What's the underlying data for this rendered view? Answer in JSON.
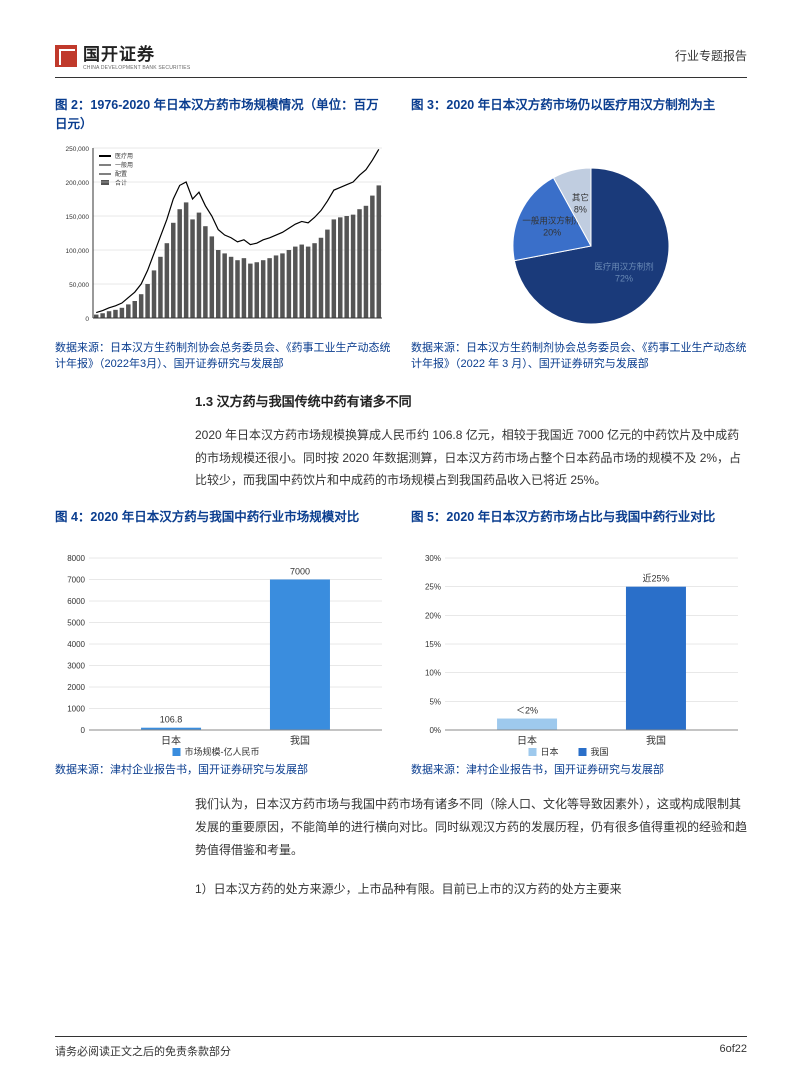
{
  "header": {
    "brand_cn": "国开证券",
    "brand_en": "CHINA DEVELOPMENT BANK SECURITIES",
    "doc_type": "行业专题报告"
  },
  "fig2": {
    "title": "图 2：1976-2020 年日本汉方药市场规模情况（单位：百万日元）",
    "source": "数据来源：日本汉方生药制剂协会总务委员会、《药事工业生产动态统计年报》（2022年3月）、国开证券研究与发展部",
    "type": "bar_line",
    "ylim": [
      0,
      250000
    ],
    "ytick_step": 50000,
    "years_count": 45,
    "bar_color": "#555555",
    "line_colors": [
      "#000000",
      "#000000",
      "#000000"
    ],
    "grid_color": "#d0d0d0",
    "background_color": "#ffffff",
    "bar_values": [
      5000,
      7000,
      10000,
      12000,
      15000,
      20000,
      25000,
      35000,
      50000,
      70000,
      90000,
      110000,
      140000,
      160000,
      170000,
      145000,
      155000,
      135000,
      120000,
      100000,
      95000,
      90000,
      85000,
      88000,
      80000,
      82000,
      85000,
      88000,
      92000,
      95000,
      100000,
      105000,
      108000,
      105000,
      110000,
      118000,
      130000,
      145000,
      148000,
      150000,
      152000,
      160000,
      165000,
      180000,
      195000
    ],
    "top_line_values": [
      8000,
      11000,
      15000,
      18000,
      22000,
      30000,
      38000,
      50000,
      70000,
      95000,
      120000,
      145000,
      175000,
      195000,
      200000,
      175000,
      185000,
      165000,
      150000,
      130000,
      122000,
      118000,
      112000,
      115000,
      108000,
      110000,
      115000,
      118000,
      122000,
      126000,
      132000,
      138000,
      142000,
      140000,
      148000,
      158000,
      172000,
      188000,
      192000,
      196000,
      200000,
      210000,
      218000,
      232000,
      248000
    ],
    "legend": [
      "医疗用",
      "一般用",
      "配置",
      "合计"
    ]
  },
  "fig3": {
    "title": "图 3：2020 年日本汉方药市场仍以医疗用汉方制剂为主",
    "source": "数据来源：日本汉方生药制剂协会总务委员会、《药事工业生产动态统计年报》（2022 年 3 月）、国开证券研究与发展部",
    "type": "pie",
    "background_color": "#ffffff",
    "slices": [
      {
        "label": "医疗用汉方制剂",
        "pct": 72,
        "pct_label": "72%",
        "color": "#1a3a7a"
      },
      {
        "label": "一般用汉方制剂",
        "pct": 20,
        "pct_label": "20%",
        "color": "#3a6fc9"
      },
      {
        "label": "其它",
        "pct": 8,
        "pct_label": "8%",
        "color": "#c0cde0"
      }
    ]
  },
  "section13": {
    "heading": "1.3 汉方药与我国传统中药有诸多不同",
    "paragraph": "2020 年日本汉方药市场规模换算成人民币约 106.8 亿元，相较于我国近 7000 亿元的中药饮片及中成药的市场规模还很小。同时按 2020 年数据测算，日本汉方药市场占整个日本药品市场的规模不及 2%，占比较少，而我国中药饮片和中成药的市场规模占到我国药品收入已将近 25%。"
  },
  "fig4": {
    "title": "图 4：2020 年日本汉方药与我国中药行业市场规模对比",
    "source": "数据来源：津村企业报告书，国开证券研究与发展部",
    "type": "bar",
    "categories": [
      "日本",
      "我国"
    ],
    "values": [
      106.8,
      7000
    ],
    "value_labels": [
      "106.8",
      "7000"
    ],
    "ylim": [
      0,
      8000
    ],
    "ytick_step": 1000,
    "bar_color": "#3a8dde",
    "grid_color": "#d0d0d0",
    "background_color": "#ffffff",
    "legend_label": "市场规模-亿人民币",
    "label_fontsize": 9
  },
  "fig5": {
    "title": "图 5：2020 年日本汉方药市场占比与我国中药行业对比",
    "source": "数据来源：津村企业报告书，国开证券研究与发展部",
    "type": "bar",
    "categories": [
      "日本",
      "我国"
    ],
    "values": [
      2,
      25
    ],
    "value_labels": [
      "＜2%",
      "近25%"
    ],
    "ylim": [
      0,
      30
    ],
    "ytick_step": 5,
    "bar_colors": [
      "#9ec9ed",
      "#2a6fc9"
    ],
    "grid_color": "#d0d0d0",
    "background_color": "#ffffff",
    "legend_labels": [
      "日本",
      "我国"
    ],
    "label_fontsize": 9,
    "ytick_format": "percent"
  },
  "closing": {
    "p1": "我们认为，日本汉方药市场与我国中药市场有诸多不同（除人口、文化等导致因素外），这或构成限制其发展的重要原因，不能简单的进行横向对比。同时纵观汉方药的发展历程，仍有很多值得重视的经验和趋势值得借鉴和考量。",
    "p2": "1）日本汉方药的处方来源少，上市品种有限。目前已上市的汉方药的处方主要来"
  },
  "footer": {
    "disclaimer": "请务必阅读正文之后的免责条款部分",
    "page": "6of22"
  }
}
